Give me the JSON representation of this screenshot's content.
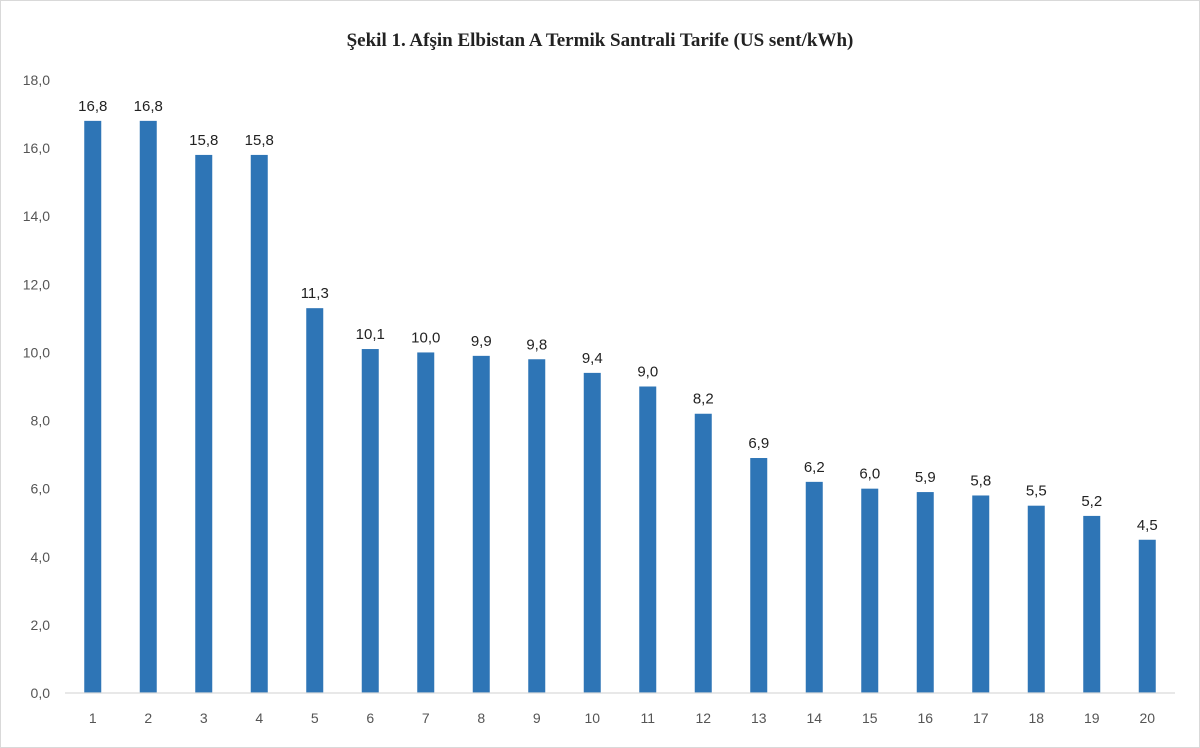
{
  "chart_data": {
    "type": "bar",
    "title": "Şekil 1. Afşin Elbistan  A Termik Santrali Tarife (US sent/kWh)",
    "xlabel": "",
    "ylabel": "",
    "categories": [
      "1",
      "2",
      "3",
      "4",
      "5",
      "6",
      "7",
      "8",
      "9",
      "10",
      "11",
      "12",
      "13",
      "14",
      "15",
      "16",
      "17",
      "18",
      "19",
      "20"
    ],
    "values": [
      16.8,
      16.8,
      15.8,
      15.8,
      11.3,
      10.1,
      10.0,
      9.9,
      9.8,
      9.4,
      9.0,
      8.2,
      6.9,
      6.2,
      6.0,
      5.9,
      5.8,
      5.5,
      5.2,
      4.5
    ],
    "value_labels": [
      "16,8",
      "16,8",
      "15,8",
      "15,8",
      "11,3",
      "10,1",
      "10,0",
      "9,9",
      "9,8",
      "9,4",
      "9,0",
      "8,2",
      "6,9",
      "6,2",
      "6,0",
      "5,9",
      "5,8",
      "5,5",
      "5,2",
      "4,5"
    ],
    "y_ticks": [
      "0,0",
      "2,0",
      "4,0",
      "6,0",
      "8,0",
      "10,0",
      "12,0",
      "14,0",
      "16,0",
      "18,0"
    ],
    "ylim": [
      0,
      18
    ],
    "grid": false,
    "legend": "none",
    "bar_color": "#2e75b6",
    "axis_color": "#d9d9d9"
  }
}
